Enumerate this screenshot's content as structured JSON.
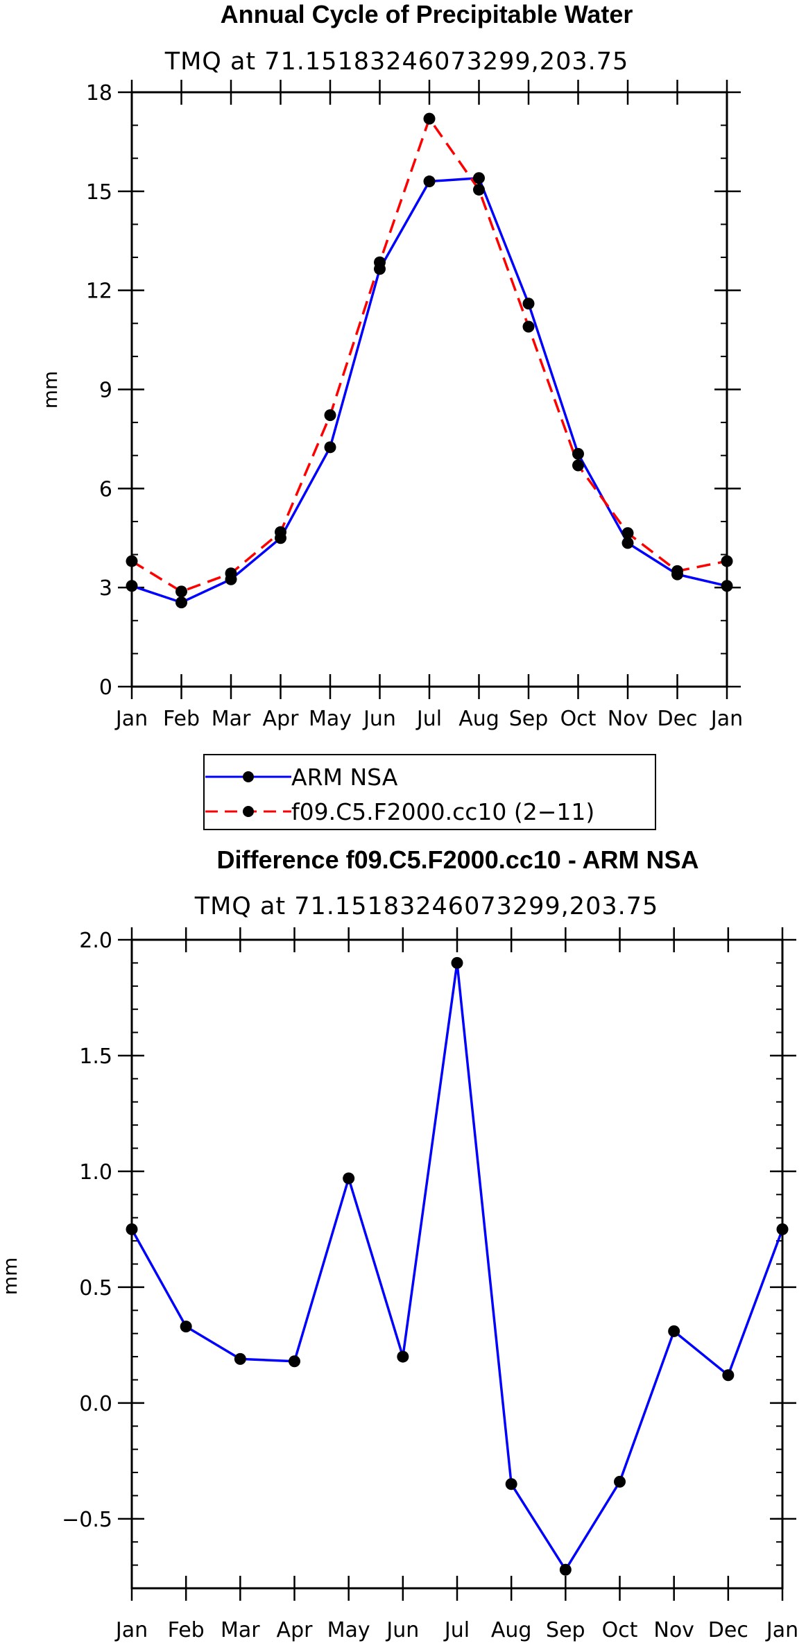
{
  "chart_data": [
    {
      "type": "line",
      "title": "Annual Cycle of Precipitable Water",
      "subtitle": "TMQ at 71.15183246073299,203.75",
      "xlabel": "",
      "ylabel": "mm",
      "categories": [
        "Jan",
        "Feb",
        "Mar",
        "Apr",
        "May",
        "Jun",
        "Jul",
        "Aug",
        "Sep",
        "Oct",
        "Nov",
        "Dec",
        "Jan"
      ],
      "ylim": [
        0,
        18
      ],
      "yticks": [
        0,
        3,
        6,
        9,
        12,
        15,
        18
      ],
      "ytick_labels": [
        "0",
        "3",
        "6",
        "9",
        "12",
        "15",
        "18"
      ],
      "series": [
        {
          "name": "ARM NSA",
          "color": "#0000ff",
          "style": "solid",
          "values": [
            3.05,
            2.55,
            3.25,
            4.5,
            7.25,
            12.65,
            15.3,
            15.4,
            11.6,
            7.05,
            4.35,
            3.4,
            3.05
          ]
        },
        {
          "name": "f09.C5.F2000.cc10 (2−11)",
          "color": "#ff0000",
          "style": "dashed",
          "values": [
            3.8,
            2.88,
            3.43,
            4.68,
            8.22,
            12.85,
            17.2,
            15.05,
            10.9,
            6.7,
            4.65,
            3.5,
            3.8
          ]
        }
      ],
      "legend": {
        "placement": "bottom",
        "entries": [
          "ARM NSA",
          "f09.C5.F2000.cc10 (2−11)"
        ]
      }
    },
    {
      "type": "line",
      "title": "Difference f09.C5.F2000.cc10 - ARM NSA",
      "subtitle": "TMQ at 71.15183246073299,203.75",
      "xlabel": "",
      "ylabel": "mm",
      "categories": [
        "Jan",
        "Feb",
        "Mar",
        "Apr",
        "May",
        "Jun",
        "Jul",
        "Aug",
        "Sep",
        "Oct",
        "Nov",
        "Dec",
        "Jan"
      ],
      "ylim": [
        -0.8,
        2.0
      ],
      "yticks": [
        -0.5,
        0.0,
        0.5,
        1.0,
        1.5,
        2.0
      ],
      "ytick_labels": [
        "−0.5",
        "0.0",
        "0.5",
        "1.0",
        "1.5",
        "2.0"
      ],
      "series": [
        {
          "name": "Difference",
          "color": "#0000ff",
          "style": "solid",
          "values": [
            0.75,
            0.33,
            0.19,
            0.18,
            0.97,
            0.2,
            1.9,
            -0.35,
            -0.72,
            -0.34,
            0.31,
            0.12,
            0.75
          ]
        }
      ]
    }
  ]
}
